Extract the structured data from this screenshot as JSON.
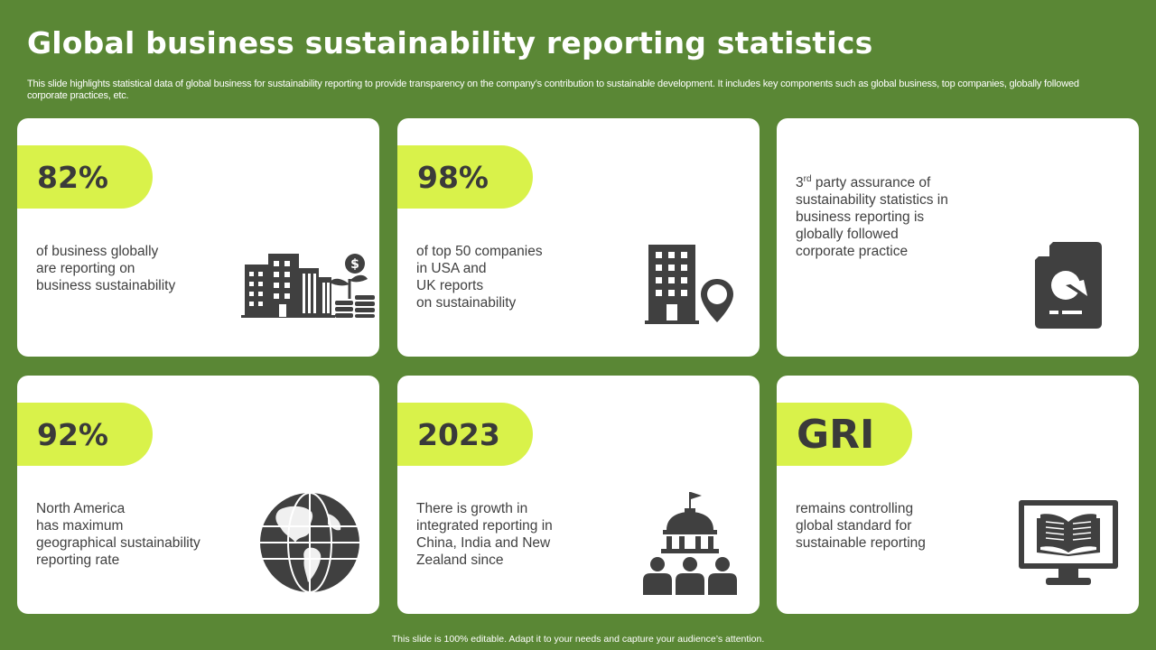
{
  "header": {
    "title": "Global business sustainability reporting statistics",
    "subtitle": "This slide highlights statistical data of global business for sustainability reporting to provide transparency on the company’s contribution to sustainable development. It includes key components such as global business, top companies, globally followed corporate practices, etc."
  },
  "cards": [
    {
      "stat": "82%",
      "lines": [
        "of business globally",
        "are reporting on",
        "business sustainability"
      ],
      "icon": "city-growth-icon"
    },
    {
      "stat": "98%",
      "lines": [
        "of top 50 companies",
        "in  USA and",
        "UK reports",
        "on sustainability"
      ],
      "icon": "building-location-icon"
    },
    {
      "stat": "",
      "sup_prefix": "3",
      "sup": "rd",
      "first_line_rest": " party assurance of",
      "lines": [
        "sustainability statistics in",
        "business reporting is",
        "globally followed",
        "corporate practice"
      ],
      "icon": "pie-chart-document-icon"
    },
    {
      "stat": "92%",
      "lines": [
        "North America",
        "has maximum",
        "geographical sustainability",
        "reporting rate"
      ],
      "icon": "globe-icon"
    },
    {
      "stat": "2023",
      "lines": [
        "There is growth in",
        "integrated reporting in",
        "China, India and New",
        "Zealand since"
      ],
      "icon": "government-people-icon"
    },
    {
      "stat": "GRI",
      "lines": [
        "remains controlling",
        "global standard for",
        "sustainable reporting"
      ],
      "icon": "monitor-book-icon"
    }
  ],
  "footer": "This slide is 100% editable. Adapt it to your needs and capture your audience’s attention.",
  "colors": {
    "background": "#5a8735",
    "accent": "#d9f24a",
    "icon": "#404040",
    "card": "#ffffff"
  }
}
